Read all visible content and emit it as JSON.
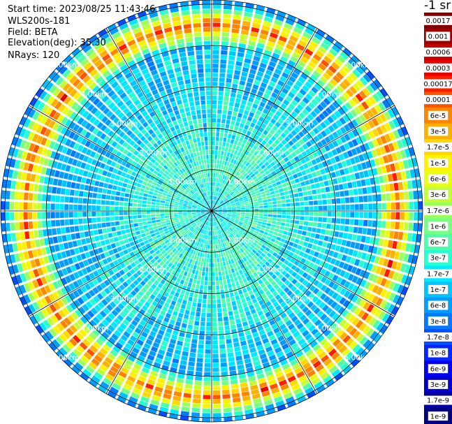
{
  "info": {
    "start_time": "Start time: 2023/08/25 11:43:46",
    "instrument": "WLS200s-181",
    "field": "Field: BETA",
    "elevation": "Elevation(deg): 35.30",
    "nrays": "NRays: 120"
  },
  "units_label": "-1 sr",
  "chart_data": {
    "type": "heatmap",
    "projection": "polar (PPI scan)",
    "field": "BETA",
    "elevation_deg": 35.3,
    "n_rays": 120,
    "range_rings_km": [
      1.0,
      2.0,
      3.0,
      4.0,
      5.0
    ],
    "range_ring_labels": [
      "1.00km",
      "2.00km",
      "3.00km",
      "4.00km",
      "5.00km"
    ],
    "max_range_km": 5.1,
    "spoke_angles_deg": [
      0,
      30,
      60,
      90,
      120,
      150,
      180,
      210,
      240,
      270,
      300,
      330
    ],
    "colorbar": {
      "scale": "log",
      "labels": [
        "0.0017",
        "0.001",
        "0.0006",
        "0.0003",
        "0.00017",
        "0.0001",
        "6e-5",
        "3e-5",
        "1.7e-5",
        "1e-5",
        "6e-6",
        "3e-6",
        "1.7e-6",
        "1e-6",
        "6e-7",
        "3e-7",
        "1.7e-7",
        "1e-7",
        "6e-8",
        "3e-8",
        "1.7e-8",
        "1e-8",
        "6e-9",
        "3e-9",
        "1.7e-9",
        "1e-9"
      ],
      "colors": [
        "#7f0000",
        "#9e0000",
        "#c40000",
        "#e60000",
        "#ff1a00",
        "#ff5200",
        "#ff8400",
        "#ffb000",
        "#ffd900",
        "#fff200",
        "#e6ff12",
        "#c2ff36",
        "#9cff5c",
        "#76ff82",
        "#4effaa",
        "#28ffd0",
        "#00e9ff",
        "#00c4ff",
        "#009cff",
        "#0078ff",
        "#0050ff",
        "#0028ff",
        "#0000f2",
        "#0000c8",
        "#00009e",
        "#000080"
      ]
    },
    "radial_profile": [
      {
        "range_km": 0.0,
        "value": "1e-7"
      },
      {
        "range_km": 1.0,
        "value": "3e-7"
      },
      {
        "range_km": 2.0,
        "value": "1.7e-7"
      },
      {
        "range_km": 3.0,
        "value": "1e-7"
      },
      {
        "range_km": 4.0,
        "value": "6e-8"
      },
      {
        "range_km": 4.3,
        "value": "6e-6"
      },
      {
        "range_km": 4.5,
        "value": "6e-5"
      },
      {
        "range_km": 4.7,
        "value": "6e-6"
      },
      {
        "range_km": 5.0,
        "value": "3e-8"
      }
    ]
  }
}
